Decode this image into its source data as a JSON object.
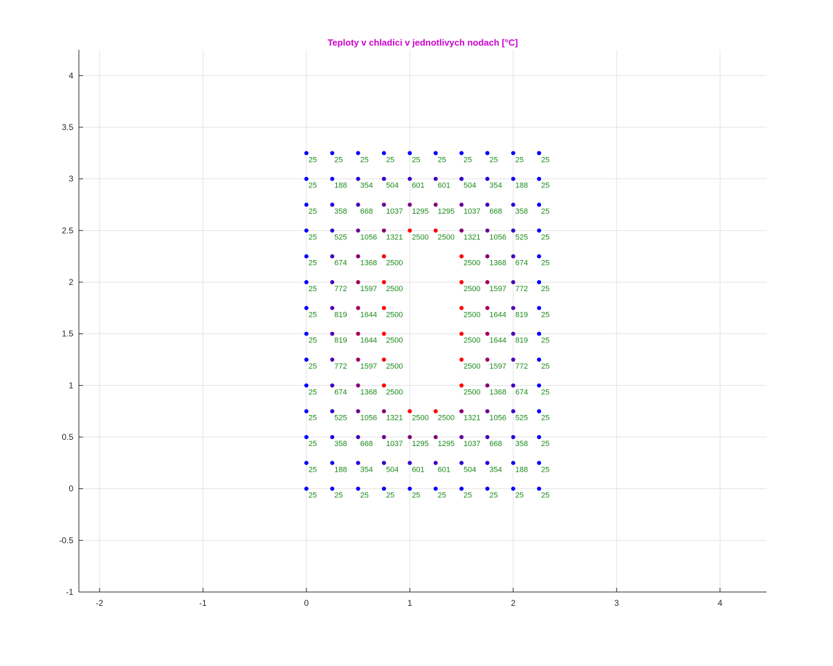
{
  "chart_data": {
    "type": "scatter",
    "title": "Teploty v chladici v jednotlivych nodach [°C]",
    "xlabel": "",
    "ylabel": "",
    "xlim": [
      -2.2,
      4.45
    ],
    "ylim": [
      -1,
      4.25
    ],
    "x_ticks": [
      -2,
      -1,
      0,
      1,
      2,
      3,
      4
    ],
    "y_ticks": [
      -1,
      -0.5,
      0,
      0.5,
      1,
      1.5,
      2,
      2.5,
      3,
      3.5,
      4
    ],
    "x_tick_labels": [
      "-2",
      "-1",
      "0",
      "1",
      "2",
      "3",
      "4"
    ],
    "y_tick_labels": [
      "-1",
      "-0.5",
      "0",
      "0.5",
      "1",
      "1.5",
      "2",
      "2.5",
      "3",
      "3.5",
      "4"
    ],
    "grid": true,
    "x": [
      0,
      0.25,
      0.5,
      0.75,
      1,
      1.25,
      1.5,
      1.75,
      2,
      2.25
    ],
    "y": [
      0,
      0.25,
      0.5,
      0.75,
      1,
      1.25,
      1.5,
      1.75,
      2,
      2.25,
      2.5,
      2.75,
      3,
      3.25
    ],
    "values": [
      [
        25,
        25,
        25,
        25,
        25,
        25,
        25,
        25,
        25,
        25
      ],
      [
        25,
        188,
        354,
        504,
        601,
        601,
        504,
        354,
        188,
        25
      ],
      [
        25,
        358,
        668,
        1037,
        1295,
        1295,
        1037,
        668,
        358,
        25
      ],
      [
        25,
        525,
        1056,
        1321,
        2500,
        2500,
        1321,
        1056,
        525,
        25
      ],
      [
        25,
        674,
        1368,
        2500,
        null,
        null,
        2500,
        1368,
        674,
        25
      ],
      [
        25,
        772,
        1597,
        2500,
        null,
        null,
        2500,
        1597,
        772,
        25
      ],
      [
        25,
        819,
        1644,
        2500,
        null,
        null,
        2500,
        1644,
        819,
        25
      ],
      [
        25,
        819,
        1644,
        2500,
        null,
        null,
        2500,
        1644,
        819,
        25
      ],
      [
        25,
        772,
        1597,
        2500,
        null,
        null,
        2500,
        1597,
        772,
        25
      ],
      [
        25,
        674,
        1368,
        2500,
        null,
        null,
        2500,
        1368,
        674,
        25
      ],
      [
        25,
        525,
        1056,
        1321,
        2500,
        2500,
        1321,
        1056,
        525,
        25
      ],
      [
        25,
        358,
        668,
        1037,
        1295,
        1295,
        1037,
        668,
        358,
        25
      ],
      [
        25,
        188,
        354,
        504,
        601,
        601,
        504,
        354,
        188,
        25
      ],
      [
        25,
        25,
        25,
        25,
        25,
        25,
        25,
        25,
        25,
        25
      ]
    ],
    "value_range": [
      25,
      2500
    ],
    "colors": {
      "title": "#cc00cc",
      "cold_point": "#0000ff",
      "hot_point": "#ff0000",
      "value_label": "#1a8a1a",
      "grid": "#e3e3e3",
      "axis": "#262626"
    }
  }
}
